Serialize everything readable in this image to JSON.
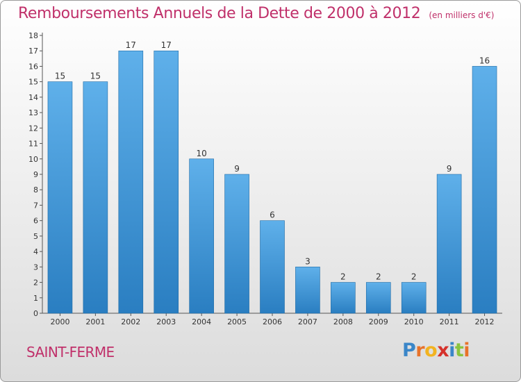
{
  "header": {
    "title": "Remboursements Annuels de la Dette de 2000 à 2012",
    "unit": "(en milliers d'€)"
  },
  "footer": {
    "commune": "SAINT-FERME",
    "logo": "Proxiti"
  },
  "colors": {
    "bar_light": "#5fb0ea",
    "bar_dark": "#2a7ec1",
    "title": "#c0306a"
  },
  "chart_data": {
    "type": "bar",
    "title": "Remboursements Annuels de la Dette de 2000 à 2012",
    "categories": [
      "2000",
      "2001",
      "2002",
      "2003",
      "2004",
      "2005",
      "2006",
      "2007",
      "2008",
      "2009",
      "2010",
      "2011",
      "2012"
    ],
    "values": [
      15,
      15,
      17,
      17,
      10,
      9,
      6,
      3,
      2,
      2,
      2,
      9,
      16
    ],
    "y_ticks": [
      "0",
      "1",
      "2",
      "3",
      "4",
      "5",
      "6",
      "7",
      "8",
      "9",
      "10",
      "11",
      "12",
      "13",
      "14",
      "15",
      "16",
      "17",
      "18"
    ],
    "ylim": [
      0,
      18
    ],
    "grid": false,
    "legend": "none"
  }
}
